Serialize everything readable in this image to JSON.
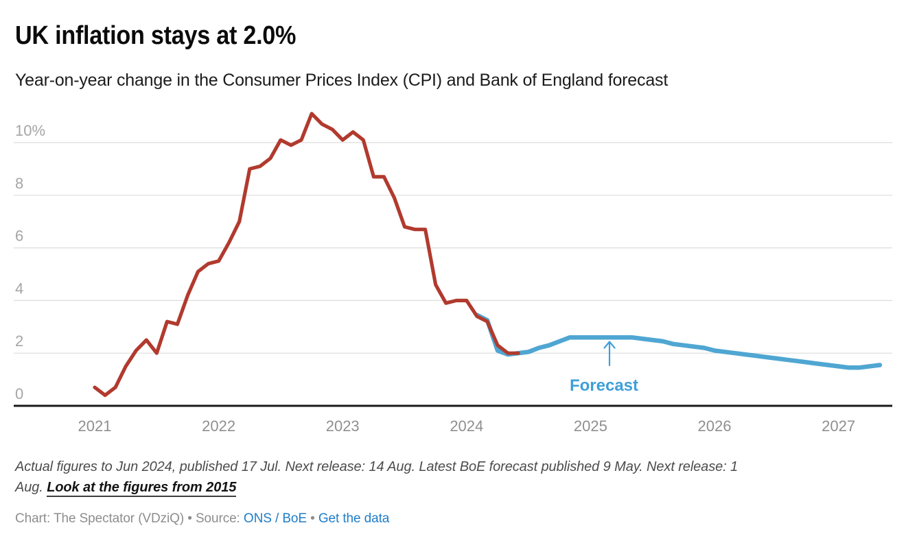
{
  "header": {
    "title": "UK inflation stays at 2.0%",
    "subtitle": "Year-on-year change in the Consumer Prices Index (CPI) and Bank of England forecast"
  },
  "chart_data": {
    "type": "line",
    "title": "UK inflation stays at 2.0%",
    "subtitle": "Year-on-year change in the Consumer Prices Index (CPI) and Bank of England forecast",
    "unit": "%",
    "x_axis": {
      "tick_labels": [
        "2021",
        "2022",
        "2023",
        "2024",
        "2025",
        "2026",
        "2027"
      ],
      "tick_months": [
        0,
        12,
        24,
        36,
        48,
        60,
        72
      ],
      "months_origin": "Jan 2021"
    },
    "y_axis": {
      "ticks": [
        0,
        2,
        4,
        6,
        8,
        10
      ],
      "tick_labels": [
        "0",
        "2",
        "4",
        "6",
        "8",
        "10%"
      ],
      "ylim": [
        0,
        11.6
      ],
      "grid": true
    },
    "series": [
      {
        "name": "CPI actual",
        "color": "#b13a2e",
        "start_month": 0,
        "start_label": "Jan 2021",
        "end_label": "Jun 2024",
        "values": [
          0.7,
          0.4,
          0.7,
          1.5,
          2.1,
          2.5,
          2.0,
          3.2,
          3.1,
          4.2,
          5.1,
          5.4,
          5.5,
          6.2,
          7.0,
          9.0,
          9.1,
          9.4,
          10.1,
          9.9,
          10.1,
          11.1,
          10.7,
          10.5,
          10.1,
          10.4,
          10.1,
          8.7,
          8.7,
          7.9,
          6.8,
          6.7,
          6.7,
          4.6,
          3.9,
          4.0,
          4.0,
          3.4,
          3.2,
          2.3,
          2.0,
          2.0
        ]
      },
      {
        "name": "Bank of England forecast",
        "color": "#4fa6d2",
        "start_month": 37,
        "start_label": "Feb 2024",
        "end_label": "May 2027",
        "values": [
          3.45,
          3.25,
          2.1,
          1.95,
          2.0,
          2.05,
          2.2,
          2.3,
          2.45,
          2.6,
          2.6,
          2.6,
          2.6,
          2.6,
          2.6,
          2.6,
          2.55,
          2.5,
          2.45,
          2.35,
          2.3,
          2.25,
          2.2,
          2.1,
          2.05,
          2.0,
          1.95,
          1.9,
          1.85,
          1.8,
          1.75,
          1.7,
          1.65,
          1.6,
          1.55,
          1.5,
          1.45,
          1.45,
          1.5,
          1.55
        ]
      }
    ],
    "annotation": {
      "label": "Forecast",
      "color": "#3e9fd8"
    },
    "legend_position": "none",
    "colors": {
      "gridline": "#dcdcdc",
      "axis_line": "#1a1a1a"
    }
  },
  "footer": {
    "notes": {
      "line1": "Actual figures to Jun 2024, published 17 Jul. Next release: 14 Aug. Latest BoE forecast published 9 May. Next release: 1",
      "line2_prefix": "Aug. ",
      "link_label": "Look at the figures from 2015"
    },
    "credit": {
      "prefix": "Chart: The Spectator (VDziQ) • Source: ",
      "source_link": "ONS / BoE",
      "separator": " • ",
      "data_link": "Get the data"
    }
  }
}
